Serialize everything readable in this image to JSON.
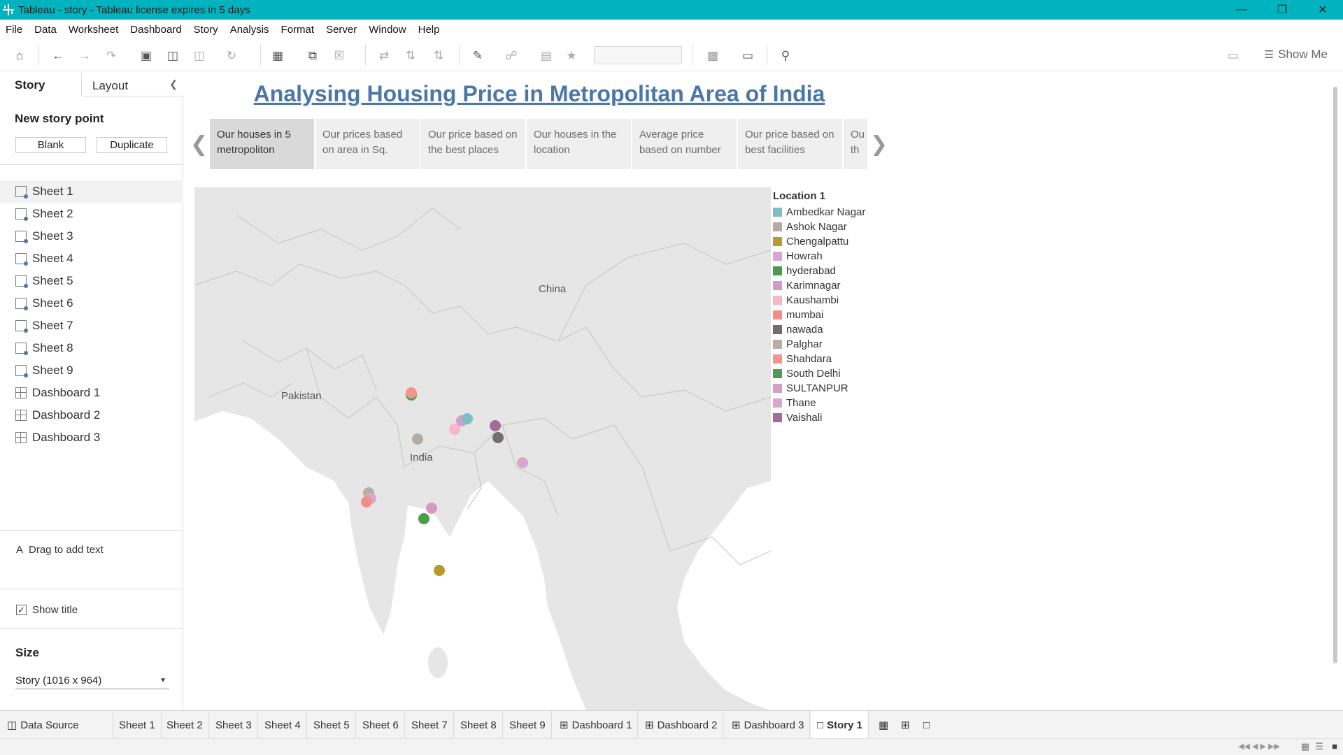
{
  "window": {
    "title": "Tableau - story - Tableau license expires in 5 days"
  },
  "menu": [
    "File",
    "Data",
    "Worksheet",
    "Dashboard",
    "Story",
    "Analysis",
    "Format",
    "Server",
    "Window",
    "Help"
  ],
  "toolbar": {
    "show_me_label": "Show Me"
  },
  "left_pane": {
    "tab_story": "Story",
    "tab_layout": "Layout",
    "new_story_point": "New story point",
    "blank_button": "Blank",
    "duplicate_button": "Duplicate",
    "sheets": [
      "Sheet 1",
      "Sheet 2",
      "Sheet 3",
      "Sheet 4",
      "Sheet 5",
      "Sheet 6",
      "Sheet 7",
      "Sheet 8",
      "Sheet 9"
    ],
    "dashboards": [
      "Dashboard 1",
      "Dashboard 2",
      "Dashboard 3"
    ],
    "drag_text": "Drag to add text",
    "show_title": "Show title",
    "show_title_checked": true,
    "size_label": "Size",
    "size_value": "Story (1016 x 964)"
  },
  "story": {
    "title": "Analysing Housing Price in Metropolitan Area of India",
    "points": [
      "Our houses in 5 metropoliton",
      "Our prices based on area in Sq.",
      "Our price based on the best places",
      "Our houses in the location",
      "Average price based on number",
      "Our price based on best facilities",
      "Ou th"
    ],
    "active_point": 0
  },
  "map": {
    "labels": {
      "china": "China",
      "pakistan": "Pakistan",
      "india": "India"
    }
  },
  "legend": {
    "title": "Location 1",
    "items": [
      {
        "name": "Ambedkar Nagar",
        "color": "#7fbfbf"
      },
      {
        "name": "Ashok Nagar",
        "color": "#b4aca4"
      },
      {
        "name": "Chengalpattu",
        "color": "#b89a2b"
      },
      {
        "name": "Howrah",
        "color": "#d9a6cc"
      },
      {
        "name": "hyderabad",
        "color": "#4a9e4a"
      },
      {
        "name": "Karimnagar",
        "color": "#d39ac6"
      },
      {
        "name": "Kaushambi",
        "color": "#f6b8c8"
      },
      {
        "name": "mumbai",
        "color": "#f28e8a"
      },
      {
        "name": "nawada",
        "color": "#746d6d"
      },
      {
        "name": "Palghar",
        "color": "#b7aea6"
      },
      {
        "name": "Shahdara",
        "color": "#f2948f"
      },
      {
        "name": "South Delhi",
        "color": "#4f9b52"
      },
      {
        "name": "SULTANPUR",
        "color": "#d2a0c9"
      },
      {
        "name": "Thane",
        "color": "#d9a6cc"
      },
      {
        "name": "Vaishali",
        "color": "#a56c9a"
      }
    ]
  },
  "bottom_tabs": [
    "Data Source",
    "Sheet 1",
    "Sheet 2",
    "Sheet 3",
    "Sheet 4",
    "Sheet 5",
    "Sheet 6",
    "Sheet 7",
    "Sheet 8",
    "Sheet 9",
    "Dashboard 1",
    "Dashboard 2",
    "Dashboard 3",
    "Story 1"
  ],
  "active_bottom_tab": "Story 1"
}
